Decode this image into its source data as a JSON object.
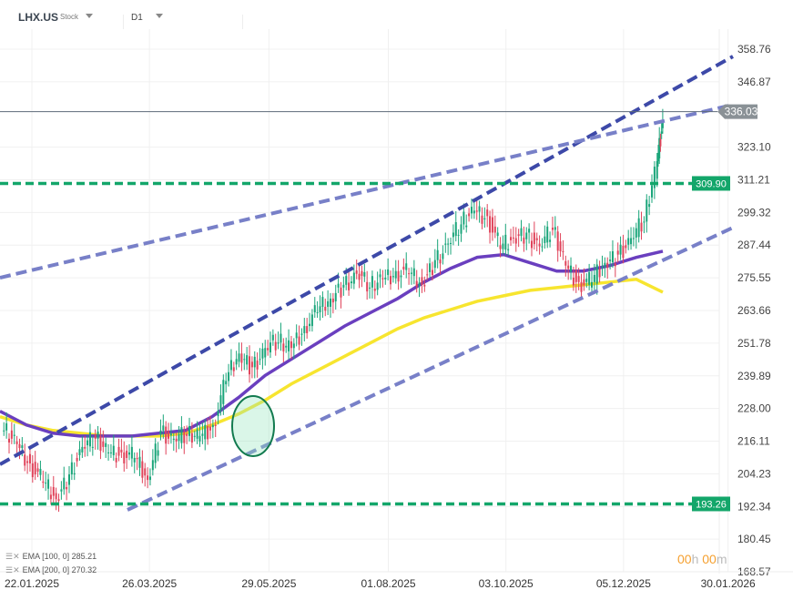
{
  "header": {
    "symbol": "LHX.US",
    "type": "Stock",
    "timeframe": "D1"
  },
  "colors": {
    "up": "#1aa57a",
    "down": "#e0435a",
    "ema100": "#6a3fbf",
    "ema200": "#f7e52f",
    "trend_dark": "#3d49a8",
    "trend_light": "#7880c8",
    "level": "#13a66a",
    "price_tag": "#8a9196"
  },
  "legend": [
    {
      "label": "EMA [100, 0] 285.21"
    },
    {
      "label": "EMA [200, 0] 270.32"
    }
  ],
  "timer": {
    "h": "00",
    "h_unit": "h",
    "m": "00",
    "m_unit": "m"
  },
  "chart_data": {
    "type": "candlestick",
    "y_ticks": [
      "358.76",
      "346.87",
      "323.10",
      "311.21",
      "299.32",
      "287.44",
      "275.55",
      "263.66",
      "251.78",
      "239.89",
      "228.00",
      "216.11",
      "204.23",
      "192.34",
      "180.45",
      "168.57"
    ],
    "ylim": [
      168.57,
      358.76
    ],
    "x_ticks": [
      "22.01.2025",
      "26.03.2025",
      "29.05.2025",
      "01.08.2025",
      "03.10.2025",
      "05.12.2025",
      "30.01.2026"
    ],
    "closes": [
      [
        "2025-01-07",
        220
      ],
      [
        "2025-01-14",
        215
      ],
      [
        "2025-01-21",
        208
      ],
      [
        "2025-01-28",
        201
      ],
      [
        "2025-02-04",
        195
      ],
      [
        "2025-02-11",
        204
      ],
      [
        "2025-02-18",
        214
      ],
      [
        "2025-02-25",
        217
      ],
      [
        "2025-03-04",
        212
      ],
      [
        "2025-03-11",
        212
      ],
      [
        "2025-03-18",
        210
      ],
      [
        "2025-03-25",
        202
      ],
      [
        "2025-04-01",
        220
      ],
      [
        "2025-04-08",
        217
      ],
      [
        "2025-04-15",
        218
      ],
      [
        "2025-04-22",
        218
      ],
      [
        "2025-04-29",
        222
      ],
      [
        "2025-05-06",
        238
      ],
      [
        "2025-05-13",
        248
      ],
      [
        "2025-05-20",
        243
      ],
      [
        "2025-05-27",
        250
      ],
      [
        "2025-06-03",
        252
      ],
      [
        "2025-06-10",
        250
      ],
      [
        "2025-06-17",
        258
      ],
      [
        "2025-06-24",
        263
      ],
      [
        "2025-07-01",
        268
      ],
      [
        "2025-07-08",
        273
      ],
      [
        "2025-07-15",
        277
      ],
      [
        "2025-07-22",
        272
      ],
      [
        "2025-07-29",
        275
      ],
      [
        "2025-08-05",
        278
      ],
      [
        "2025-08-12",
        277
      ],
      [
        "2025-08-19",
        273
      ],
      [
        "2025-08-26",
        282
      ],
      [
        "2025-09-02",
        288
      ],
      [
        "2025-09-09",
        295
      ],
      [
        "2025-09-16",
        300
      ],
      [
        "2025-09-23",
        298
      ],
      [
        "2025-09-30",
        286
      ],
      [
        "2025-10-07",
        290
      ],
      [
        "2025-10-14",
        292
      ],
      [
        "2025-10-21",
        287
      ],
      [
        "2025-10-28",
        293
      ],
      [
        "2025-11-04",
        280
      ],
      [
        "2025-11-11",
        274
      ],
      [
        "2025-11-18",
        274
      ],
      [
        "2025-11-25",
        281
      ],
      [
        "2025-12-02",
        284
      ],
      [
        "2025-12-09",
        290
      ],
      [
        "2025-12-16",
        296
      ],
      [
        "2025-12-23",
        318
      ],
      [
        "2025-12-26",
        333
      ]
    ],
    "ema100": [
      227,
      222,
      219,
      218,
      218,
      218,
      219,
      220,
      225,
      232,
      240,
      246,
      252,
      258,
      263,
      268,
      274,
      279,
      283,
      284,
      281,
      278,
      278,
      280,
      283,
      285.21
    ],
    "ema200": [
      225,
      222,
      220,
      219,
      218,
      218,
      218,
      219,
      222,
      226,
      231,
      237,
      242,
      247,
      252,
      257,
      261,
      264,
      267,
      269,
      271,
      272,
      273,
      274,
      275,
      270.32
    ],
    "current_price": "336.03",
    "levels": [
      {
        "value": 309.9,
        "label": "309.90"
      },
      {
        "value": 193.26,
        "label": "193.26"
      }
    ],
    "grid": true
  }
}
